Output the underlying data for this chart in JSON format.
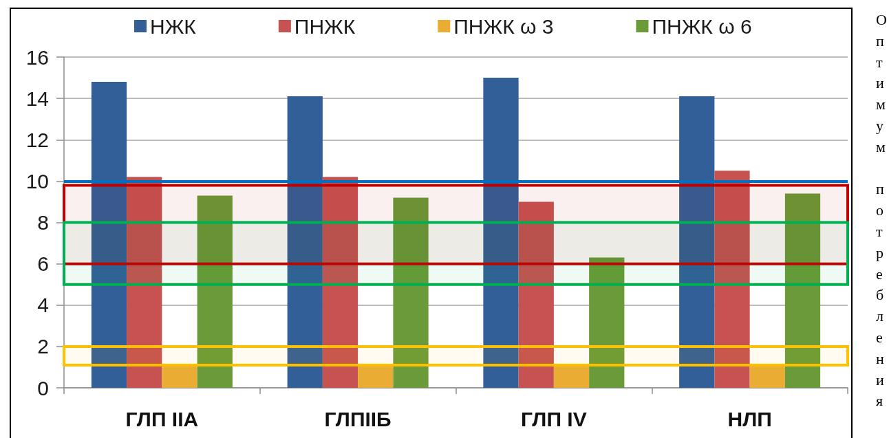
{
  "chart_data": {
    "type": "bar",
    "categories": [
      "ГЛП IIA",
      "ГЛПIIБ",
      "ГЛП IV",
      "НЛП"
    ],
    "series": [
      {
        "name": "НЖК",
        "color": "#325f97",
        "values": [
          14.8,
          14.1,
          15.0,
          14.1
        ]
      },
      {
        "name": "ПНЖК",
        "color": "#c65251",
        "values": [
          10.2,
          10.2,
          9.0,
          10.5
        ]
      },
      {
        "name": "ПНЖК ω 3",
        "color": "#e9ad33",
        "values": [
          1.1,
          1.1,
          1.1,
          1.1
        ]
      },
      {
        "name": "ПНЖК ω 6",
        "color": "#6a9b38",
        "values": [
          9.3,
          9.2,
          6.3,
          9.4
        ]
      }
    ],
    "ylim": [
      0,
      16
    ],
    "yticks": [
      0,
      2,
      4,
      6,
      8,
      10,
      12,
      14,
      16
    ],
    "grid": "y",
    "legend": "top",
    "ref_lines": [
      {
        "axis": "y",
        "value": 10,
        "color": "#0070c0"
      }
    ],
    "bands": [
      {
        "axis": "y",
        "from": 6,
        "to": 9.8,
        "color": "#c00000"
      },
      {
        "axis": "y",
        "from": 5,
        "to": 8,
        "color": "#00b050"
      },
      {
        "axis": "y",
        "from": 1.1,
        "to": 2,
        "color": "#ffc000"
      }
    ],
    "annotations": [
      "Оптимум потребления"
    ]
  }
}
